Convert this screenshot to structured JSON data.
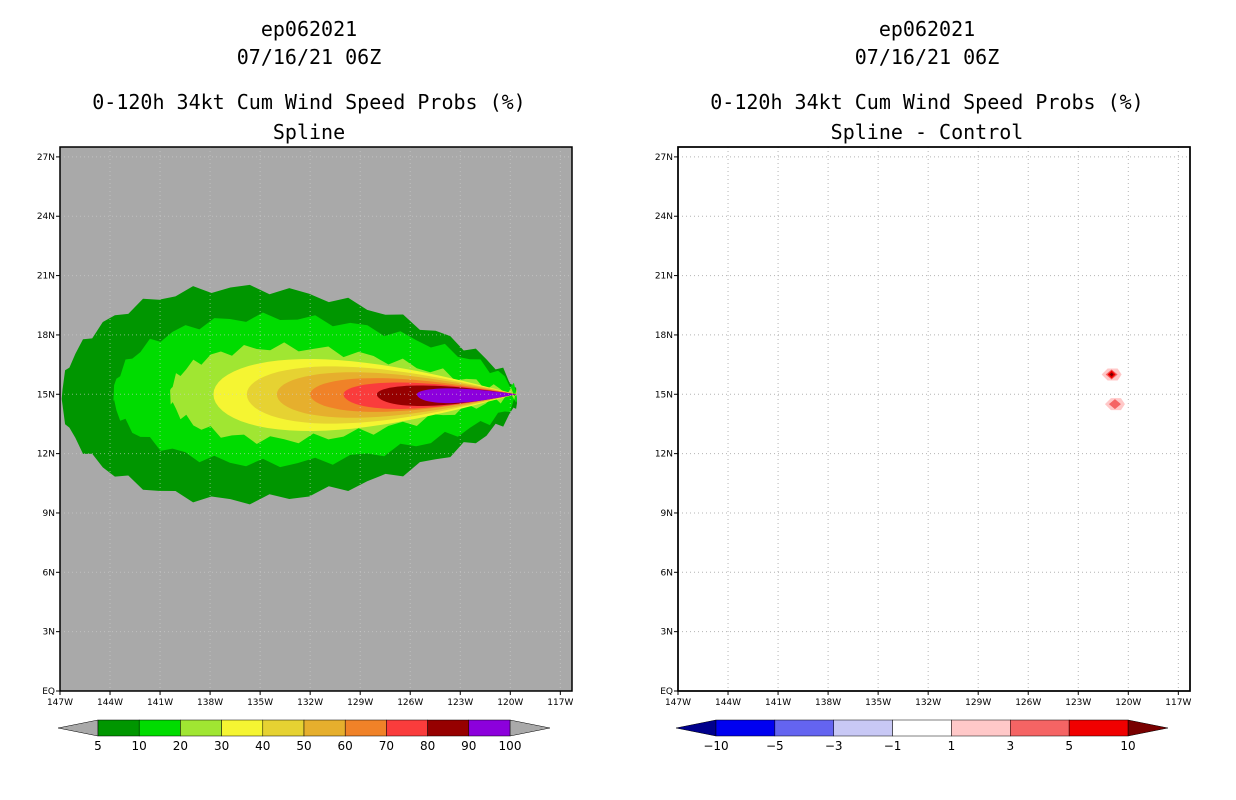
{
  "chart_data": [
    {
      "type": "heatmap",
      "storm": "ep062021",
      "datetime": "07/16/21 06Z",
      "title": "0-120h 34kt Cum Wind Speed Probs (%)",
      "subtitle": "Spline",
      "x_ticks": [
        "147W",
        "144W",
        "141W",
        "138W",
        "135W",
        "132W",
        "129W",
        "126W",
        "123W",
        "120W",
        "117W"
      ],
      "y_ticks": [
        "EQ",
        "3N",
        "6N",
        "9N",
        "12N",
        "15N",
        "18N",
        "21N",
        "24N",
        "27N"
      ],
      "xlim_deg_west": [
        147,
        116.3
      ],
      "ylim_deg_north": [
        0,
        27.5
      ],
      "background_color": "#a9a9a9",
      "legend_levels": [
        "5",
        "10",
        "20",
        "30",
        "40",
        "50",
        "60",
        "70",
        "80",
        "90",
        "100"
      ],
      "legend_colors": [
        "#009600",
        "#00dc00",
        "#a0e632",
        "#f5f532",
        "#e6d232",
        "#e6af2d",
        "#f08228",
        "#fa3c3c",
        "#960000",
        "#8c00dc"
      ],
      "contours": [
        {
          "level": 5,
          "color": "#009600",
          "west": 146.9,
          "east": 119.6,
          "north": 21.5,
          "south": 8.6,
          "center_lat": 14.8
        },
        {
          "level": 10,
          "color": "#00dc00",
          "west": 143.8,
          "east": 119.6,
          "north": 19.7,
          "south": 10.8,
          "center_lat": 14.9
        },
        {
          "level": 20,
          "color": "#a0e632",
          "west": 140.4,
          "east": 119.6,
          "north": 18.2,
          "south": 11.9,
          "center_lat": 15.0
        },
        {
          "level": 30,
          "color": "#f5f532",
          "west": 137.8,
          "east": 119.6,
          "north": 17.4,
          "south": 12.5,
          "center_lat": 15.0
        },
        {
          "level": 40,
          "color": "#e6d232",
          "west": 135.8,
          "east": 119.6,
          "north": 16.9,
          "south": 13.0,
          "center_lat": 15.0
        },
        {
          "level": 50,
          "color": "#e6af2d",
          "west": 134.0,
          "east": 119.6,
          "north": 16.5,
          "south": 13.4,
          "center_lat": 15.0
        },
        {
          "level": 60,
          "color": "#f08228",
          "west": 132.0,
          "east": 119.6,
          "north": 16.1,
          "south": 13.8,
          "center_lat": 15.0
        },
        {
          "level": 70,
          "color": "#fa3c3c",
          "west": 130.0,
          "east": 119.6,
          "north": 15.8,
          "south": 14.0,
          "center_lat": 15.0
        },
        {
          "level": 80,
          "color": "#960000",
          "west": 128.0,
          "east": 119.6,
          "north": 15.6,
          "south": 14.2,
          "center_lat": 15.0
        },
        {
          "level": 90,
          "color": "#8c00dc",
          "west": 125.6,
          "east": 119.6,
          "north": 15.4,
          "south": 14.4,
          "center_lat": 15.0
        }
      ]
    },
    {
      "type": "heatmap",
      "storm": "ep062021",
      "datetime": "07/16/21 06Z",
      "title": "0-120h 34kt Cum Wind Speed Probs (%)",
      "subtitle": "Spline - Control",
      "x_ticks": [
        "147W",
        "144W",
        "141W",
        "138W",
        "135W",
        "132W",
        "129W",
        "126W",
        "123W",
        "120W",
        "117W"
      ],
      "y_ticks": [
        "EQ",
        "3N",
        "6N",
        "9N",
        "12N",
        "15N",
        "18N",
        "21N",
        "24N",
        "27N"
      ],
      "xlim_deg_west": [
        147,
        116.3
      ],
      "ylim_deg_north": [
        0,
        27.5
      ],
      "background_color": "#ffffff",
      "grid": true,
      "legend_levels": [
        "-10",
        "-5",
        "-3",
        "-1",
        "1",
        "3",
        "5",
        "10"
      ],
      "legend_colors": [
        "#00008c",
        "#0000f0",
        "#6464f0",
        "#c8c8f5",
        "#ffffff",
        "#ffc8c8",
        "#f56464",
        "#f00000",
        "#780000"
      ],
      "anomalies": [
        {
          "lon_w": 121.0,
          "lat_n": 16.0,
          "value": 10
        },
        {
          "lon_w": 120.8,
          "lat_n": 14.5,
          "value": 2
        }
      ]
    }
  ]
}
